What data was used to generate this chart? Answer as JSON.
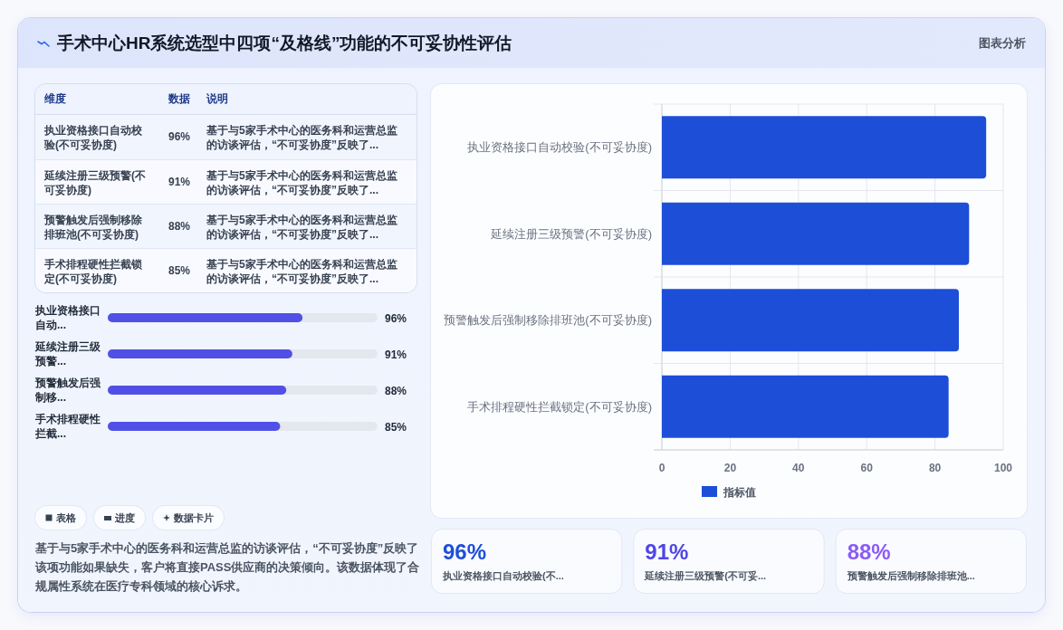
{
  "chart_data": [
    {
      "type": "other",
      "title": "手术中心HR系统选型中四项“及格线”功能的不可妥协性评估",
      "annotations": [
        "图表分析"
      ]
    },
    {
      "type": "other",
      "categories": [
        "执业资格接口自动校验(不可妥协度)",
        "延续注册三级预警(不可妥协度)",
        "预警触发后强制移除排班池(不可妥协度)",
        "手术排程硬性拦截锁定(不可妥协度)"
      ],
      "values": [
        96,
        91,
        88,
        85
      ],
      "value_labels": [
        "96%",
        "91%",
        "88%",
        "85%"
      ],
      "annotations": [
        "维度",
        "数据",
        "说明",
        "基于与5家手术中心的医务科和运营总监的访谈评估，“不可妥协度”反映了...",
        "基于与5家手术中心的医务科和运营总监的访谈评估，“不可妥协度”反映了...",
        "基于与5家手术中心的医务科和运营总监的访谈评估，“不可妥协度”反映了...",
        "基于与5家手术中心的医务科和运营总监的访谈评估，“不可妥协度”反映了..."
      ]
    },
    {
      "type": "bar",
      "orientation": "horizontal",
      "categories": [
        "执业资格接口自动...",
        "延续注册三级预警...",
        "预警触发后强制移...",
        "手术排程硬性拦截..."
      ],
      "values": [
        96,
        91,
        88,
        85
      ],
      "value_labels": [
        "96%",
        "91%",
        "88%",
        "85%"
      ],
      "color": "#5150e6",
      "xlim": [
        0,
        133
      ],
      "tick_labels": "y"
    },
    {
      "type": "other",
      "annotations": [
        "表格",
        "进度",
        "数据卡片",
        "基于与5家手术中心的医务科和运营总监的访谈评估，“不可妥协度”反映了该项功能如果缺失，客户将直接PASS供应商的决策倾向。该数据体现了合规属性系统在医疗专科领域的核心诉求。"
      ]
    },
    {
      "type": "bar",
      "orientation": "horizontal",
      "categories": [
        "执业资格接口自动校验(不可妥协度)",
        "延续注册三级预警(不可妥协度)",
        "预警触发后强制移除排班池(不可妥协度)",
        "手术排程硬性拦截锁定(不可妥协度)"
      ],
      "series": [
        {
          "name": "指标值",
          "color": "#1d4ed8",
          "values": [
            95,
            90,
            87,
            84
          ]
        }
      ],
      "xlim": [
        0,
        100
      ],
      "xticks": [
        0,
        20,
        40,
        60,
        80,
        100
      ],
      "grid": true,
      "legend": "bottom"
    },
    {
      "type": "other",
      "categories": [
        "执业资格接口自动校验(不...",
        "延续注册三级预警(不可妥...",
        "预警触发后强制移除排班池..."
      ],
      "values": [
        96,
        91,
        88
      ],
      "value_labels": [
        "96%",
        "91%",
        "88%"
      ]
    }
  ]
}
